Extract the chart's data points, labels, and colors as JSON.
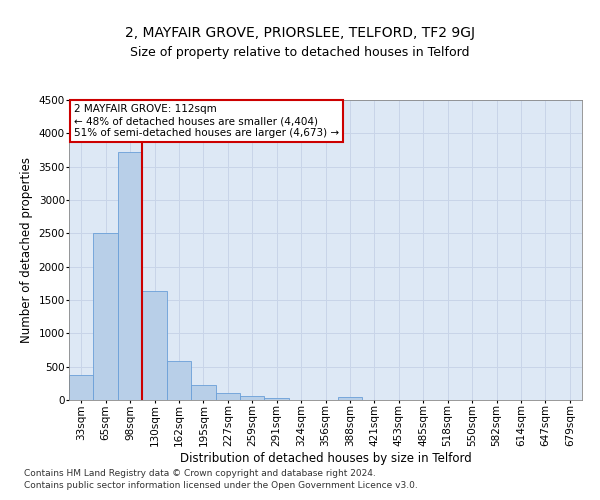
{
  "title": "2, MAYFAIR GROVE, PRIORSLEE, TELFORD, TF2 9GJ",
  "subtitle": "Size of property relative to detached houses in Telford",
  "xlabel": "Distribution of detached houses by size in Telford",
  "ylabel": "Number of detached properties",
  "categories": [
    "33sqm",
    "65sqm",
    "98sqm",
    "130sqm",
    "162sqm",
    "195sqm",
    "227sqm",
    "259sqm",
    "291sqm",
    "324sqm",
    "356sqm",
    "388sqm",
    "421sqm",
    "453sqm",
    "485sqm",
    "518sqm",
    "550sqm",
    "582sqm",
    "614sqm",
    "647sqm",
    "679sqm"
  ],
  "values": [
    370,
    2500,
    3720,
    1630,
    580,
    230,
    105,
    60,
    35,
    0,
    0,
    50,
    0,
    0,
    0,
    0,
    0,
    0,
    0,
    0,
    0
  ],
  "bar_color": "#b8cfe8",
  "bar_edge_color": "#6a9fd8",
  "vline_x_idx": 2,
  "vline_color": "#cc0000",
  "annotation_line1": "2 MAYFAIR GROVE: 112sqm",
  "annotation_line2": "← 48% of detached houses are smaller (4,404)",
  "annotation_line3": "51% of semi-detached houses are larger (4,673) →",
  "annotation_box_color": "#ffffff",
  "annotation_box_edge": "#cc0000",
  "ylim": [
    0,
    4500
  ],
  "yticks": [
    0,
    500,
    1000,
    1500,
    2000,
    2500,
    3000,
    3500,
    4000,
    4500
  ],
  "grid_color": "#c8d4e8",
  "bg_color": "#dde8f5",
  "footer_line1": "Contains HM Land Registry data © Crown copyright and database right 2024.",
  "footer_line2": "Contains public sector information licensed under the Open Government Licence v3.0.",
  "title_fontsize": 10,
  "subtitle_fontsize": 9,
  "xlabel_fontsize": 8.5,
  "ylabel_fontsize": 8.5,
  "tick_fontsize": 7.5,
  "annotation_fontsize": 7.5
}
